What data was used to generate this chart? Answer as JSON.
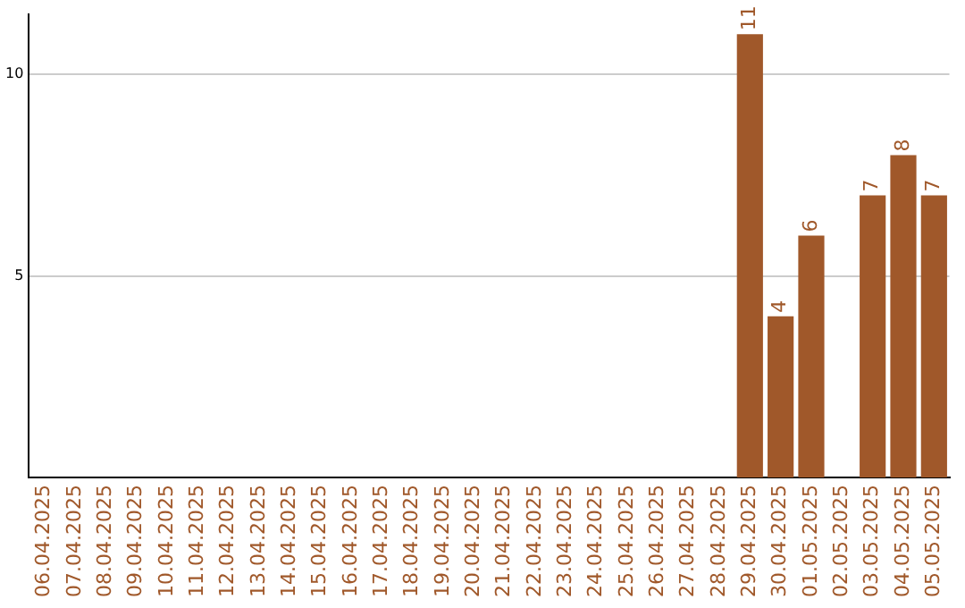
{
  "chart_data": {
    "type": "bar",
    "categories": [
      "06.04.2025",
      "07.04.2025",
      "08.04.2025",
      "09.04.2025",
      "10.04.2025",
      "11.04.2025",
      "12.04.2025",
      "13.04.2025",
      "14.04.2025",
      "15.04.2025",
      "16.04.2025",
      "17.04.2025",
      "18.04.2025",
      "19.04.2025",
      "20.04.2025",
      "21.04.2025",
      "22.04.2025",
      "23.04.2025",
      "24.04.2025",
      "25.04.2025",
      "26.04.2025",
      "27.04.2025",
      "28.04.2025",
      "29.04.2025",
      "30.04.2025",
      "01.05.2025",
      "02.05.2025",
      "03.05.2025",
      "04.05.2025",
      "05.05.2025"
    ],
    "values": [
      0,
      0,
      0,
      0,
      0,
      0,
      0,
      0,
      0,
      0,
      0,
      0,
      0,
      0,
      0,
      0,
      0,
      0,
      0,
      0,
      0,
      0,
      0,
      11,
      4,
      6,
      0,
      7,
      8,
      7
    ],
    "value_labels": [
      null,
      null,
      null,
      null,
      null,
      null,
      null,
      null,
      null,
      null,
      null,
      null,
      null,
      null,
      null,
      null,
      null,
      null,
      null,
      null,
      null,
      null,
      null,
      "11",
      "4",
      "6",
      null,
      "7",
      "8",
      "7"
    ],
    "color": "#a0582a",
    "ylim": [
      0,
      11.5
    ],
    "yticks": [
      5,
      10
    ],
    "grid": "y",
    "legend": false
  }
}
